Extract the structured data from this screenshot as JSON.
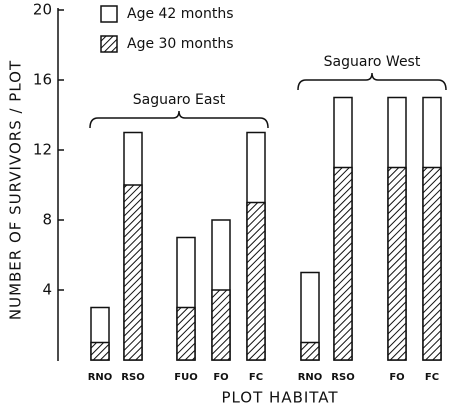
{
  "chart_data": {
    "type": "bar",
    "ylabel": "NUMBER OF SURVIVORS / PLOT",
    "xlabel": "PLOT HABITAT",
    "categories": [
      "RNO",
      "RSO",
      "FUO",
      "FO",
      "FC",
      "RNO",
      "RSO",
      "FO",
      "FC"
    ],
    "series": [
      {
        "name": "Age 42 months",
        "color": "#ffffff",
        "values": [
          3,
          13,
          7,
          8,
          13,
          5,
          15,
          15,
          15
        ]
      },
      {
        "name": "Age 30 months",
        "color": "hatch",
        "values": [
          1,
          10,
          3,
          4,
          9,
          1,
          11,
          11,
          11
        ]
      }
    ],
    "annotations": [
      {
        "text": "Saguaro East"
      },
      {
        "text": "Saguaro West"
      }
    ],
    "ylim": [
      0,
      20
    ],
    "yticks": [
      4,
      8,
      12,
      16,
      20
    ]
  }
}
